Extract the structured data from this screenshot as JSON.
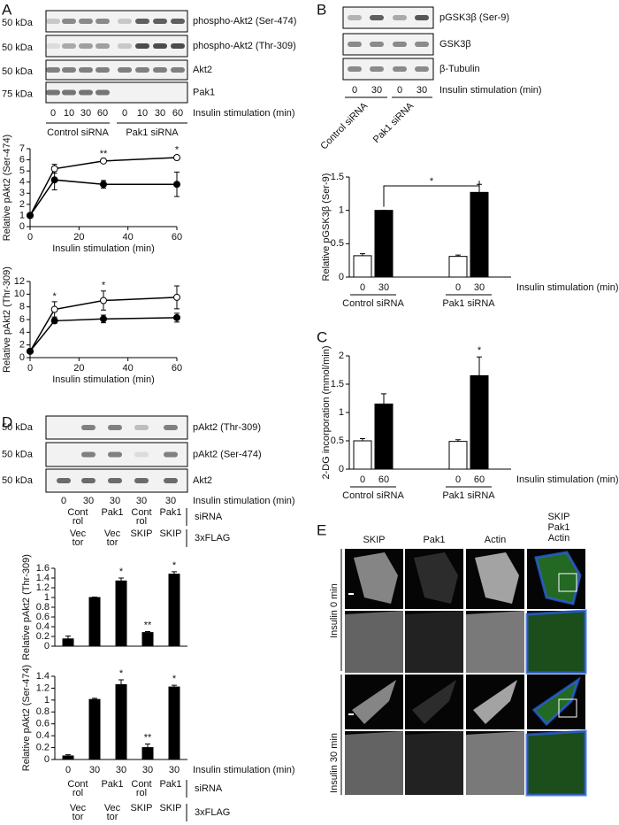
{
  "panels": {
    "A": {
      "letter": "A",
      "blots": [
        {
          "mw": "50 kDa",
          "label": "phospho-Akt2 (Ser-474)"
        },
        {
          "mw": "50 kDa",
          "label": "phospho-Akt2 (Thr-309)"
        },
        {
          "mw": "50 kDa",
          "label": "Akt2"
        },
        {
          "mw": "75 kDa",
          "label": "Pak1"
        }
      ],
      "lanes": [
        "0",
        "10",
        "30",
        "60",
        "0",
        "10",
        "30",
        "60"
      ],
      "lanes_title": "Insulin stimulation (min)",
      "groups": [
        "Control siRNA",
        "Pak1 siRNA"
      ]
    },
    "B": {
      "letter": "B",
      "blots": [
        {
          "label": "pGSK3β (Ser-9)"
        },
        {
          "label": "GSK3β"
        },
        {
          "label": "β-Tubulin"
        }
      ],
      "lanes": [
        "0",
        "30",
        "0",
        "30"
      ],
      "lanes_title": "Insulin stimulation (min)",
      "groups": [
        "Control siRNA",
        "Pak1 siRNA"
      ]
    },
    "C": {
      "letter": "C"
    },
    "D": {
      "letter": "D",
      "blots": [
        {
          "mw": "50 kDa",
          "label": "pAkt2 (Thr-309)"
        },
        {
          "mw": "50 kDa",
          "label": "pAkt2 (Ser-474)"
        },
        {
          "mw": "50 kDa",
          "label": "Akt2"
        }
      ],
      "lanes": [
        "0",
        "30",
        "30",
        "30",
        "30"
      ],
      "lanes_title": "Insulin stimulation (min)",
      "sirna": [
        [
          "Cont",
          "rol"
        ],
        [
          "Pak1"
        ],
        [
          "Cont",
          "rol"
        ],
        [
          "Pak1"
        ]
      ],
      "sirna_title": "siRNA",
      "flag": [
        [
          "Vec",
          "tor"
        ],
        [
          "Vec",
          "tor"
        ],
        [
          "SKIP"
        ],
        [
          "SKIP"
        ]
      ],
      "flag_title": "3xFLAG"
    },
    "E": {
      "letter": "E",
      "columns": [
        "SKIP",
        "Pak1",
        "Actin"
      ],
      "merge_legend": [
        {
          "text": "SKIP",
          "color": "#3cb34a"
        },
        {
          "text": "Pak1",
          "color": "#e0262b"
        },
        {
          "text": "Actin",
          "color": "#2b5fd9"
        }
      ],
      "rows": [
        "Insulin 0 min",
        "Insulin 30 min"
      ]
    }
  },
  "chart_data": [
    {
      "type": "line",
      "y_label": "Relative pAkt2 (Ser-474)",
      "x_label": "Insulin stimulation (min)",
      "x": [
        0,
        10,
        30,
        60
      ],
      "xlim": [
        0,
        60
      ],
      "xticks": [
        0,
        20,
        40,
        60
      ],
      "ylim": [
        0,
        7
      ],
      "yticks": [
        0,
        1,
        2,
        3,
        4,
        5,
        6,
        7
      ],
      "series": [
        {
          "color": "#ffffff",
          "values": [
            1,
            5.2,
            5.9,
            6.2
          ],
          "errors": [
            0.15,
            0.4,
            0.15,
            0.2
          ]
        },
        {
          "color": "#000000",
          "values": [
            1,
            4.2,
            3.8,
            3.8
          ],
          "errors": [
            0.1,
            0.9,
            0.35,
            1.1
          ]
        }
      ],
      "annotations": [
        {
          "x": 30,
          "text": "**"
        },
        {
          "x": 60,
          "text": "*"
        }
      ]
    },
    {
      "type": "line",
      "y_label": "Relative pAkt2 (Thr-309)",
      "x_label": "Insulin stimulation (min)",
      "x": [
        0,
        10,
        30,
        60
      ],
      "xlim": [
        0,
        60
      ],
      "xticks": [
        0,
        20,
        40,
        60
      ],
      "ylim": [
        0,
        12
      ],
      "yticks": [
        0,
        2,
        4,
        6,
        8,
        10,
        12
      ],
      "series": [
        {
          "color": "#ffffff",
          "values": [
            1,
            7.6,
            9,
            9.5
          ],
          "errors": [
            0.3,
            1.2,
            1.5,
            1.8
          ]
        },
        {
          "color": "#000000",
          "values": [
            1,
            5.8,
            6.1,
            6.3
          ],
          "errors": [
            0.2,
            0.4,
            0.6,
            0.7
          ]
        }
      ],
      "annotations": [
        {
          "x": 10,
          "text": "*"
        },
        {
          "x": 30,
          "text": "*"
        }
      ]
    },
    {
      "type": "bar",
      "y_label": "Relative pGSK3β (Ser-9)",
      "x_label": "Insulin stimulation (min)",
      "categories": [
        "0",
        "30",
        "0",
        "30"
      ],
      "groups": [
        "Control siRNA",
        "Pak1 siRNA"
      ],
      "values": [
        0.32,
        1,
        0.31,
        1.27
      ],
      "errors": [
        0.03,
        0,
        0.02,
        0.12
      ],
      "colors": [
        "#ffffff",
        "#000000",
        "#ffffff",
        "#000000"
      ],
      "ylim": [
        0,
        1.5
      ],
      "yticks": [
        0,
        0.5,
        1,
        1.5
      ],
      "bracket": {
        "between": [
          1,
          3
        ],
        "text": "*"
      }
    },
    {
      "type": "bar",
      "y_label": "2-DG incorporation (mmol/min)",
      "x_label": "Insulin stimulation (min)",
      "categories": [
        "0",
        "60",
        "0",
        "60"
      ],
      "groups": [
        "Control siRNA",
        "Pak1 siRNA"
      ],
      "values": [
        0.5,
        1.15,
        0.49,
        1.65
      ],
      "errors": [
        0.04,
        0.18,
        0.03,
        0.33
      ],
      "colors": [
        "#ffffff",
        "#000000",
        "#ffffff",
        "#000000"
      ],
      "ylim": [
        0,
        2
      ],
      "yticks": [
        0,
        0.5,
        1,
        1.5,
        2
      ],
      "annotations": [
        null,
        null,
        null,
        "*"
      ]
    },
    {
      "type": "bar",
      "y_label": "Relative pAkt2 (Thr-309)",
      "values": [
        0.15,
        1,
        1.34,
        0.28,
        1.48
      ],
      "errors": [
        0.06,
        0.01,
        0.06,
        0.02,
        0.05
      ],
      "colors": [
        "#000000",
        "#000000",
        "#000000",
        "#000000",
        "#000000"
      ],
      "ylim": [
        0,
        1.6
      ],
      "yticks": [
        0,
        0.2,
        0.4,
        0.6,
        0.8,
        1,
        1.2,
        1.4,
        1.6
      ],
      "annotations": [
        null,
        null,
        "*",
        "**",
        "*"
      ]
    },
    {
      "type": "bar",
      "y_label": "Relative pAkt2 (Ser-474)",
      "x_label": "Insulin stimulation (min)",
      "categories": [
        "0",
        "30",
        "30",
        "30",
        "30"
      ],
      "values": [
        0.06,
        1.01,
        1.26,
        0.2,
        1.22
      ],
      "errors": [
        0.02,
        0.02,
        0.08,
        0.06,
        0.03
      ],
      "colors": [
        "#000000",
        "#000000",
        "#000000",
        "#000000",
        "#000000"
      ],
      "ylim": [
        0,
        1.4
      ],
      "yticks": [
        0,
        0.2,
        0.4,
        0.6,
        0.8,
        1,
        1.2,
        1.4
      ],
      "annotations": [
        null,
        null,
        "*",
        "**",
        "*"
      ]
    }
  ]
}
